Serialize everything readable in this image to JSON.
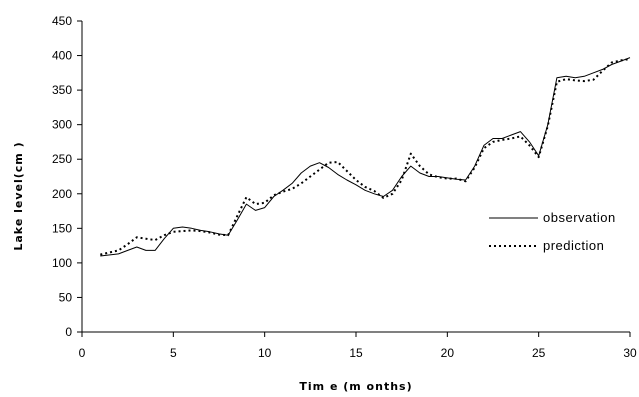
{
  "chart_data": {
    "type": "line",
    "title": "",
    "xlabel": "Tim e (m onths)",
    "ylabel": "Lake level(cm )",
    "xlim": [
      0,
      30
    ],
    "ylim": [
      0,
      450
    ],
    "xticks": [
      0,
      5,
      10,
      15,
      20,
      25,
      30
    ],
    "yticks": [
      0,
      50,
      100,
      150,
      200,
      250,
      300,
      350,
      400,
      450
    ],
    "grid": false,
    "legend_position": "right",
    "series": [
      {
        "name": "observation",
        "style": "solid",
        "color": "#000000",
        "x": [
          1,
          2,
          2.5,
          3,
          3.5,
          4,
          4.5,
          5,
          5.5,
          6,
          6.5,
          7,
          7.5,
          8,
          8.5,
          9,
          9.5,
          10,
          10.5,
          11,
          11.5,
          12,
          12.5,
          13,
          13.5,
          14,
          14.5,
          15,
          15.5,
          16,
          16.5,
          17,
          17.5,
          18,
          18.5,
          19,
          19.5,
          20,
          20.5,
          21,
          21.5,
          22,
          22.5,
          23,
          23.5,
          24,
          24.5,
          25,
          25.5,
          26,
          26.5,
          27,
          27.5,
          28,
          28.5,
          29,
          29.5,
          30
        ],
        "values": [
          110,
          113,
          118,
          123,
          118,
          118,
          135,
          150,
          152,
          150,
          147,
          145,
          142,
          140,
          162,
          185,
          176,
          180,
          196,
          205,
          215,
          230,
          240,
          245,
          238,
          228,
          220,
          213,
          205,
          200,
          196,
          205,
          225,
          240,
          230,
          225,
          225,
          223,
          221,
          220,
          240,
          270,
          280,
          280,
          285,
          290,
          275,
          255,
          300,
          368,
          370,
          368,
          370,
          375,
          380,
          387,
          392,
          397
        ]
      },
      {
        "name": "prediction",
        "style": "dotted",
        "color": "#000000",
        "x": [
          1,
          2,
          2.5,
          3,
          3.5,
          4,
          4.5,
          5,
          5.5,
          6,
          6.5,
          7,
          7.5,
          8,
          8.5,
          9,
          9.5,
          10,
          10.5,
          11,
          11.5,
          12,
          12.5,
          13,
          13.5,
          14,
          14.5,
          15,
          15.5,
          16,
          16.5,
          17,
          17.5,
          18,
          18.5,
          19,
          19.5,
          20,
          20.5,
          21,
          21.5,
          22,
          22.5,
          23,
          23.5,
          24,
          24.5,
          25,
          25.5,
          26,
          26.5,
          27,
          27.5,
          28,
          28.5,
          29,
          29.5,
          30
        ],
        "values": [
          112,
          118,
          127,
          137,
          135,
          133,
          140,
          145,
          146,
          147,
          146,
          144,
          141,
          140,
          168,
          195,
          185,
          187,
          198,
          203,
          207,
          215,
          225,
          235,
          245,
          246,
          233,
          220,
          210,
          204,
          194,
          200,
          220,
          258,
          240,
          228,
          224,
          222,
          222,
          218,
          238,
          266,
          275,
          278,
          280,
          283,
          270,
          253,
          298,
          362,
          366,
          364,
          363,
          365,
          378,
          390,
          393,
          395
        ]
      }
    ]
  }
}
